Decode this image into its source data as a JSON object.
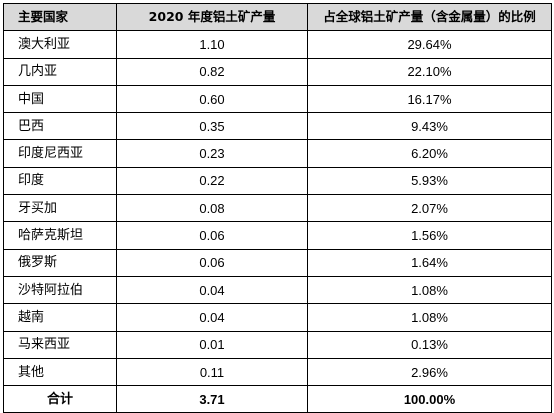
{
  "table": {
    "headers": {
      "country": "主要国家",
      "output": "2020 年度铝土矿产量",
      "share": "占全球铝土矿产量（含金属量）的比例"
    },
    "rows": [
      {
        "country": "澳大利亚",
        "output": "1.10",
        "share": "29.64%"
      },
      {
        "country": "几内亚",
        "output": "0.82",
        "share": "22.10%"
      },
      {
        "country": "中国",
        "output": "0.60",
        "share": "16.17%"
      },
      {
        "country": "巴西",
        "output": "0.35",
        "share": "9.43%"
      },
      {
        "country": "印度尼西亚",
        "output": "0.23",
        "share": "6.20%"
      },
      {
        "country": "印度",
        "output": "0.22",
        "share": "5.93%"
      },
      {
        "country": "牙买加",
        "output": "0.08",
        "share": "2.07%"
      },
      {
        "country": "哈萨克斯坦",
        "output": "0.06",
        "share": "1.56%"
      },
      {
        "country": "俄罗斯",
        "output": "0.06",
        "share": "1.64%"
      },
      {
        "country": "沙特阿拉伯",
        "output": "0.04",
        "share": "1.08%"
      },
      {
        "country": "越南",
        "output": "0.04",
        "share": "1.08%"
      },
      {
        "country": "马来西亚",
        "output": "0.01",
        "share": "0.13%"
      },
      {
        "country": "其他",
        "output": "0.11",
        "share": "2.96%"
      }
    ],
    "total": {
      "country": "合计",
      "output": "3.71",
      "share": "100.00%"
    }
  },
  "colors": {
    "header_background": "#d9d9d9",
    "border": "#000000",
    "text": "#000000",
    "background": "#ffffff"
  }
}
